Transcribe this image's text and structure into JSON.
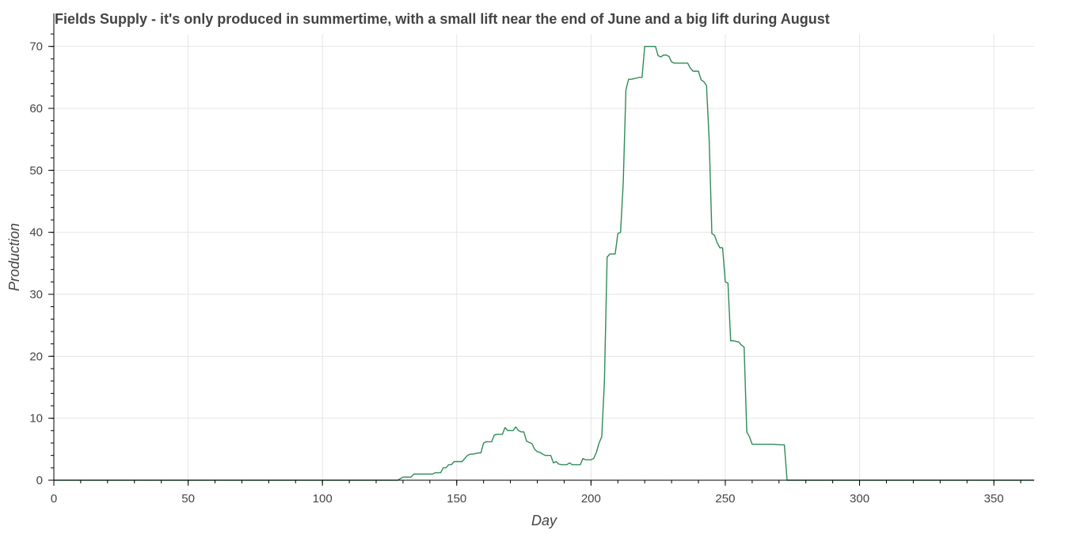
{
  "chart_data": {
    "type": "line",
    "title": "Fields Supply - it's only produced in summertime, with a small lift near the end of June and a big lift during August",
    "xlabel": "Day",
    "ylabel": "Production",
    "xlim": [
      0,
      365
    ],
    "ylim": [
      0,
      72
    ],
    "grid": true,
    "legend": "none",
    "x_ticks": [
      0,
      50,
      100,
      150,
      200,
      250,
      300,
      350
    ],
    "y_ticks": [
      0,
      10,
      20,
      30,
      40,
      50,
      60,
      70
    ],
    "series": [
      {
        "color": "#2e8b57",
        "x": [
          0,
          128,
          130,
          131,
          133,
          134,
          135,
          141,
          142,
          144,
          145,
          146,
          147,
          148,
          149,
          150,
          152,
          154,
          155,
          156,
          158,
          159,
          160,
          161,
          162,
          163,
          164,
          165,
          166,
          167,
          168,
          169,
          170,
          171,
          172,
          173,
          174,
          175,
          176,
          177,
          178,
          179,
          180,
          181,
          182,
          183,
          184,
          185,
          186,
          187,
          188,
          189,
          190,
          191,
          192,
          193,
          194,
          195,
          196,
          197,
          198,
          199,
          200,
          201,
          202,
          203,
          204,
          205,
          206,
          207,
          208,
          209,
          210,
          211,
          212,
          213,
          214,
          215,
          216,
          217,
          218,
          219,
          220,
          221,
          222,
          223,
          224,
          225,
          226,
          227,
          228,
          229,
          230,
          231,
          232,
          233,
          234,
          235,
          236,
          237,
          238,
          239,
          240,
          241,
          242,
          243,
          244,
          245,
          246,
          247,
          248,
          249,
          250,
          251,
          252,
          253,
          254,
          255,
          256,
          257,
          258,
          259,
          260,
          261,
          262,
          268,
          271,
          272,
          273,
          365
        ],
        "values": [
          0,
          0,
          0.5,
          0.5,
          0.5,
          1.0,
          1.0,
          1.0,
          1.2,
          1.2,
          2.0,
          2.0,
          2.5,
          2.5,
          3.0,
          3.0,
          3.0,
          4.0,
          4.2,
          4.2,
          4.4,
          4.4,
          6.0,
          6.2,
          6.2,
          6.2,
          7.3,
          7.4,
          7.4,
          7.4,
          8.5,
          8.0,
          8.0,
          8.0,
          8.6,
          8.0,
          7.8,
          7.8,
          6.3,
          6.1,
          5.9,
          5.0,
          4.6,
          4.5,
          4.2,
          4.0,
          4.0,
          4.0,
          2.8,
          3.0,
          2.6,
          2.5,
          2.5,
          2.5,
          2.8,
          2.5,
          2.5,
          2.5,
          2.5,
          3.5,
          3.3,
          3.3,
          3.3,
          3.5,
          4.5,
          6.0,
          7.0,
          16.0,
          36.0,
          36.5,
          36.5,
          36.5,
          39.8,
          40.0,
          48.0,
          63.0,
          64.7,
          64.7,
          64.8,
          64.9,
          65.0,
          65.0,
          70.0,
          70.0,
          70.0,
          70.0,
          70.0,
          68.5,
          68.3,
          68.6,
          68.6,
          68.4,
          67.5,
          67.3,
          67.3,
          67.3,
          67.3,
          67.3,
          67.3,
          66.5,
          66.0,
          66.0,
          66.0,
          64.6,
          64.3,
          63.7,
          55.0,
          39.8,
          39.5,
          38.3,
          37.5,
          37.5,
          32.0,
          31.8,
          22.5,
          22.5,
          22.4,
          22.3,
          21.8,
          21.5,
          7.8,
          7.0,
          5.8,
          5.8,
          5.8,
          5.8,
          5.7,
          5.7,
          0,
          0
        ]
      }
    ]
  }
}
